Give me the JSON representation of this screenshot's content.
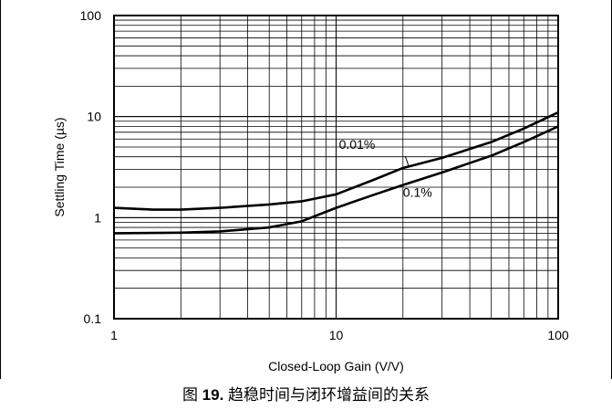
{
  "caption": {
    "prefix": "图",
    "number": "19.",
    "text": "趋稳时间与闭环增益间的关系"
  },
  "chart_data": {
    "type": "line",
    "title": "",
    "xlabel": "Closed-Loop Gain (V/V)",
    "ylabel": "Settling Time (µs)",
    "xscale": "log",
    "yscale": "log",
    "xlim": [
      1,
      100
    ],
    "ylim": [
      0.1,
      100
    ],
    "xticks": [
      1,
      10,
      100
    ],
    "xtick_labels": [
      "1",
      "10",
      "100"
    ],
    "yticks": [
      0.1,
      1,
      10,
      100
    ],
    "ytick_labels": [
      "0.1",
      "1",
      "10",
      "100"
    ],
    "grid": true,
    "series": [
      {
        "name": "0.01%",
        "color": "#000000",
        "x": [
          1,
          1.5,
          2,
          3,
          5,
          7,
          10,
          15,
          20,
          30,
          50,
          70,
          100
        ],
        "y": [
          1.25,
          1.2,
          1.2,
          1.25,
          1.35,
          1.45,
          1.7,
          2.4,
          3.1,
          3.9,
          5.6,
          7.6,
          11
        ]
      },
      {
        "name": "0.1%",
        "color": "#000000",
        "x": [
          1,
          2,
          3,
          5,
          7,
          10,
          15,
          20,
          30,
          50,
          70,
          100
        ],
        "y": [
          0.7,
          0.71,
          0.73,
          0.8,
          0.92,
          1.25,
          1.7,
          2.1,
          2.8,
          4.1,
          5.6,
          8
        ]
      }
    ]
  }
}
